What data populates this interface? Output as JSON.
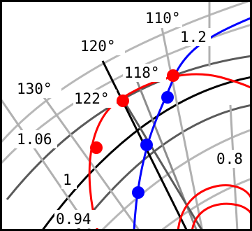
{
  "angle_labels": [
    "110°",
    "120°",
    "130°"
  ],
  "radius_labels": [
    "1.2",
    "1.06",
    "1",
    "0.94",
    "0.8"
  ],
  "point_labels": [
    "118°",
    "122°"
  ],
  "colors": {
    "background": "#ffffff",
    "frame": "#000000",
    "grid_light": "#b0b0b0",
    "grid_mid": "#8c8c8c",
    "grid_dark": "#5a5a5a",
    "grid_black": "#000000",
    "red_curve": "#ff0000",
    "red_points": "#ff0000",
    "blue_curve": "#0000ff",
    "blue_points": "#0000ff"
  }
}
